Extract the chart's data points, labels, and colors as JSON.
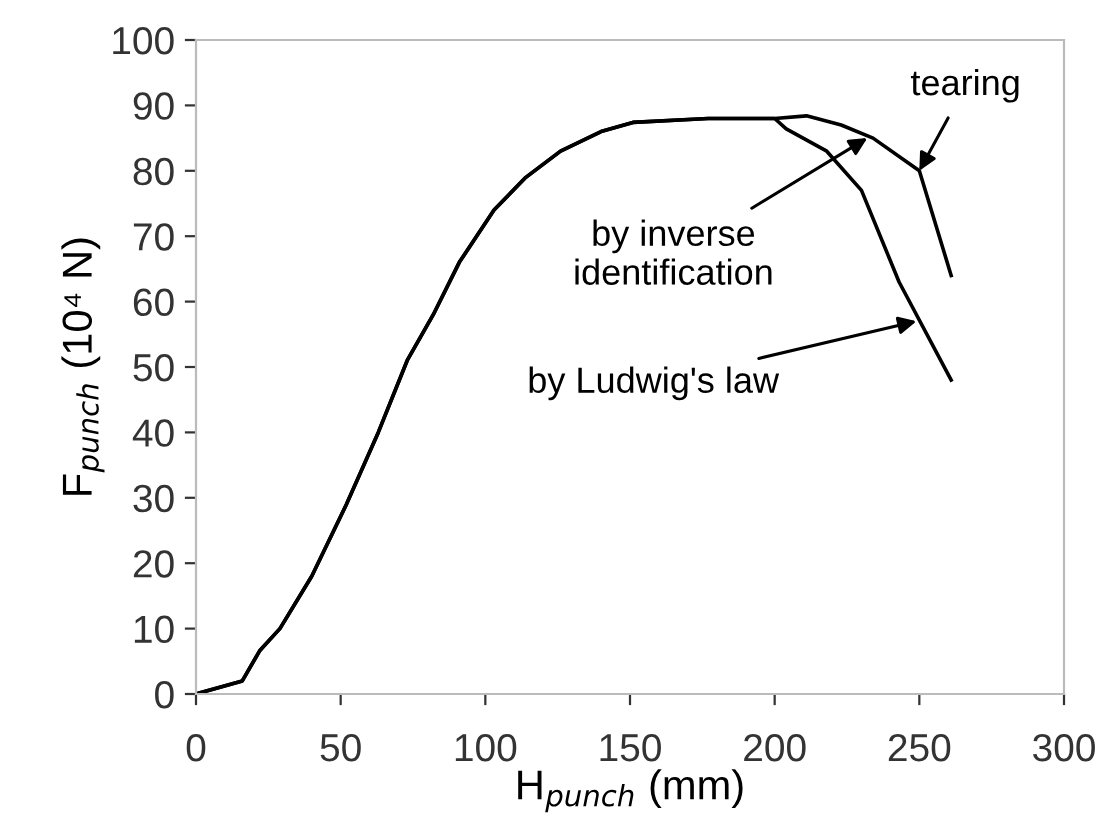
{
  "chart_data": {
    "type": "line",
    "xlabel": "H$_{punch}$ (mm)",
    "ylabel": "F$_{punch}$ (10⁴ N)",
    "series": [
      {
        "color": "#000000",
        "x": [
          0,
          16,
          22,
          29,
          40,
          52,
          63,
          73,
          82,
          91,
          103,
          114,
          126,
          140,
          151,
          177,
          200,
          211,
          223,
          234,
          250,
          261
        ],
        "values": [
          0,
          2,
          6.6,
          10,
          18,
          29,
          40,
          51,
          58,
          66,
          74,
          79,
          83,
          86,
          87.4,
          88,
          88,
          88.4,
          87,
          85,
          80,
          64
        ]
      },
      {
        "color": "#000000",
        "x": [
          0,
          16,
          22,
          29,
          40,
          52,
          63,
          73,
          82,
          91,
          103,
          114,
          126,
          140,
          151,
          177,
          200,
          204,
          218,
          230,
          243,
          261
        ],
        "values": [
          0,
          2,
          6.6,
          10,
          18,
          29,
          40,
          51,
          58,
          66,
          74,
          79,
          83,
          86,
          87.4,
          88,
          88,
          86.4,
          83,
          77,
          63,
          48
        ]
      }
    ],
    "annotations": [
      {
        "text": "tearing",
        "x": 250,
        "y": 80
      },
      {
        "text": "by inverse\nidentification",
        "x": 232,
        "y": 85
      },
      {
        "text": "by Ludwig's law",
        "x": 249,
        "y": 57
      }
    ],
    "xlim": [
      0,
      300
    ],
    "ylim": [
      0,
      100
    ],
    "xticks": [
      0,
      50,
      100,
      150,
      200,
      250,
      300
    ],
    "yticks": [
      0,
      10,
      20,
      30,
      40,
      50,
      60,
      70,
      80,
      90,
      100
    ],
    "grid": false,
    "legend": false,
    "marker": "none",
    "line_style": "solid"
  }
}
